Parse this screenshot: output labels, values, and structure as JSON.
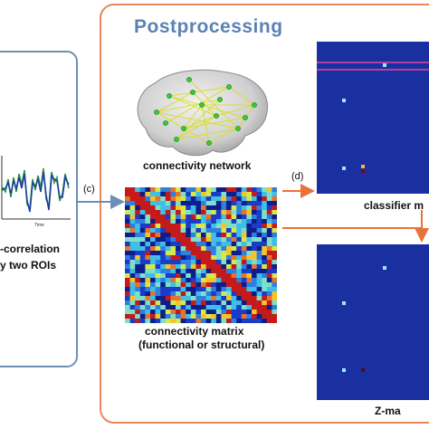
{
  "left_panel": {
    "caption_line1": "-correlation",
    "caption_line2": "y two ROIs",
    "axis_label": "Time"
  },
  "postprocessing": {
    "title": "Postprocessing",
    "connectivity_network_caption": "connectivity network",
    "connectivity_matrix_caption_line1": "connectivity matrix",
    "connectivity_matrix_caption_line2": "(functional or structural)",
    "classifier_map_caption": "classifier m",
    "z_map_caption": "Z-ma"
  },
  "arrows": {
    "c_label": "(c)",
    "d_label": "(d)"
  },
  "colors": {
    "left_panel_border": "#6d8fb3",
    "post_panel_border": "#e8875a",
    "title": "#5b82b4",
    "heatmap_background": "#1a2fa0",
    "highlight_row": "#e0409a",
    "arrow_orange": "#e8733a",
    "arrow_blue": "#6d8fb3"
  }
}
